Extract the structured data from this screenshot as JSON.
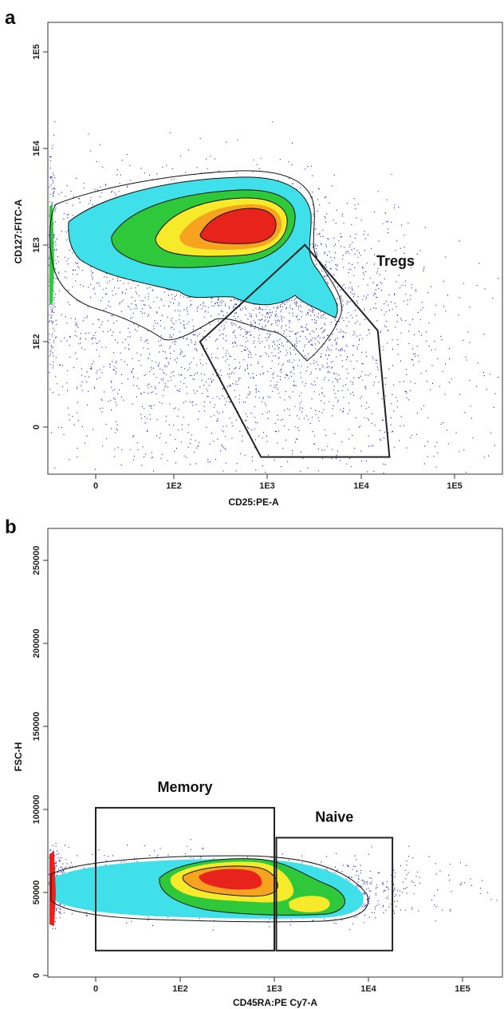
{
  "chart_data": [
    {
      "type": "scatter",
      "panel": "a",
      "xlabel": "CD25:PE-A",
      "ylabel": "CD127:FITC-A",
      "x_scale": "biexponential",
      "y_scale": "biexponential",
      "x_ticks": [
        "0",
        "1E2",
        "1E3",
        "1E4",
        "1E5"
      ],
      "y_ticks": [
        "0",
        "1E2",
        "1E3",
        "1E4",
        "1E5"
      ],
      "density_colors": [
        "#1a1ad6",
        "#3fe0ea",
        "#2fc83a",
        "#f6ea2a",
        "#f6a320",
        "#e8231b"
      ],
      "gates": [
        {
          "name": "Tregs",
          "shape": "polygon",
          "vertices": [
            [
              190,
              100
            ],
            [
              2500,
              1000
            ],
            [
              15000,
              130
            ],
            [
              20000,
              -35
            ],
            [
              850,
              -35
            ]
          ]
        }
      ]
    },
    {
      "type": "scatter",
      "panel": "b",
      "xlabel": "CD45RA:PE Cy7-A",
      "ylabel": "FSC-H",
      "x_scale": "biexponential",
      "y_scale": "linear",
      "x_ticks": [
        "0",
        "1E2",
        "1E3",
        "1E4",
        "1E5"
      ],
      "y_ticks": [
        "0",
        "50000",
        "100000",
        "150000",
        "200000",
        "250000"
      ],
      "ylim": [
        0,
        260000
      ],
      "density_colors": [
        "#1a1ad6",
        "#3fe0ea",
        "#2fc83a",
        "#f6ea2a",
        "#f6a320",
        "#e8231b"
      ],
      "gates": [
        {
          "name": "Memory",
          "shape": "rectangle",
          "x": [
            0,
            1000
          ],
          "y": [
            15000,
            101000
          ]
        },
        {
          "name": "Naive",
          "shape": "rectangle",
          "x": [
            1050,
            18000
          ],
          "y": [
            15000,
            83000
          ]
        }
      ]
    }
  ]
}
